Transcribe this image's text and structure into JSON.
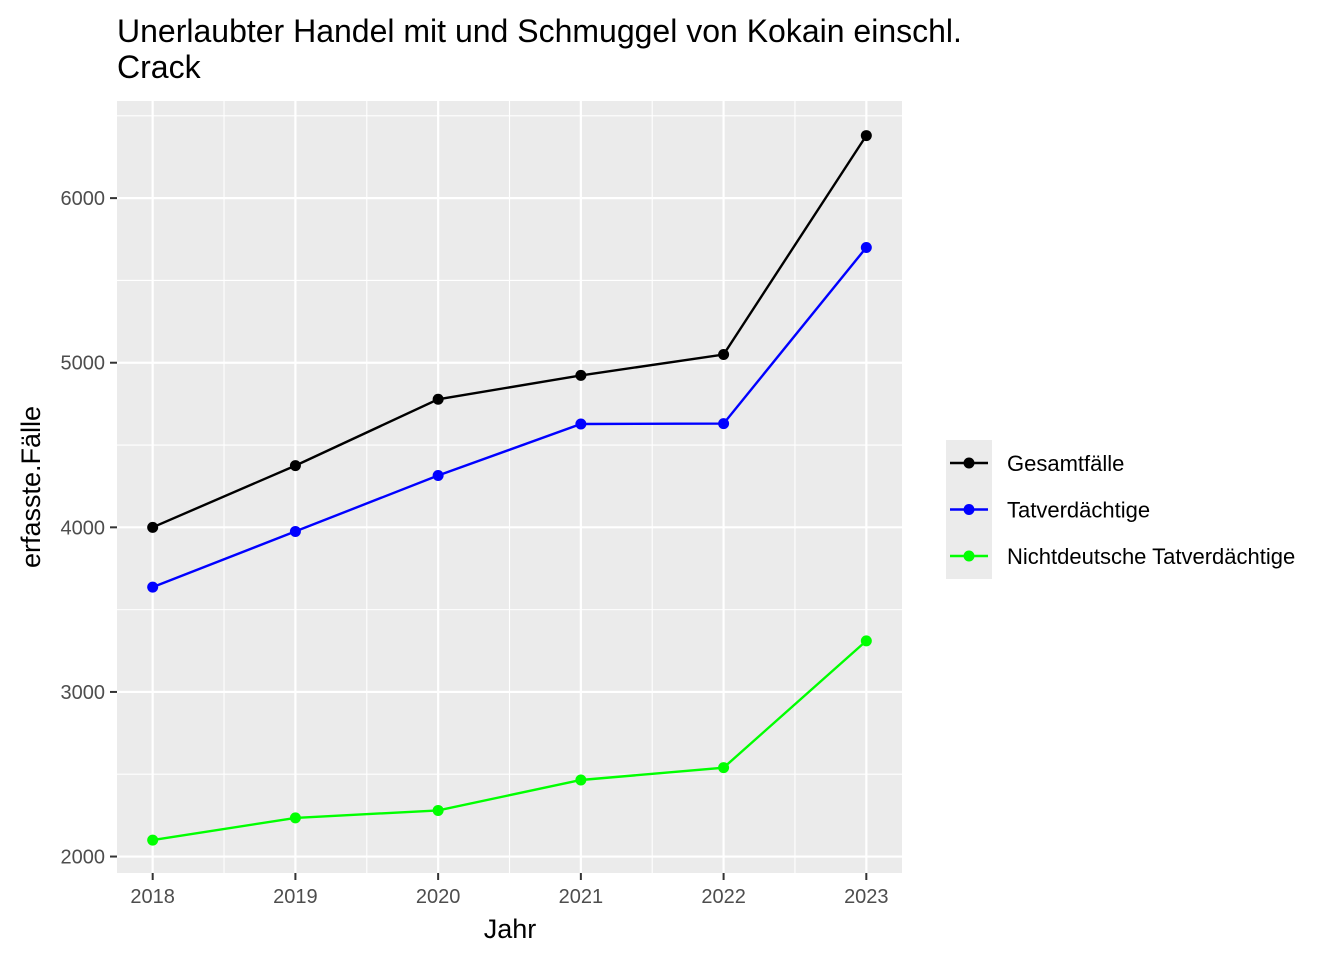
{
  "chart_data": {
    "type": "line",
    "title": "Unerlaubter Handel mit und Schmuggel von Kokain einschl.",
    "title_line2": "Crack",
    "xlabel": "Jahr",
    "ylabel": "erfasste.Fälle",
    "x": [
      2018,
      2019,
      2020,
      2021,
      2022,
      2023
    ],
    "x_tick_labels": [
      "2018",
      "2019",
      "2020",
      "2021",
      "2022",
      "2023"
    ],
    "y_ticks": [
      2000,
      3000,
      4000,
      5000,
      6000
    ],
    "y_tick_labels": [
      "2000",
      "3000",
      "4000",
      "5000",
      "6000"
    ],
    "ylim": [
      1900,
      6590
    ],
    "xlim": [
      2017.75,
      2023.25
    ],
    "grid": true,
    "legend_position": "right",
    "series": [
      {
        "name": "Gesamtfälle",
        "color": "#000000",
        "values": [
          4000,
          4375,
          4778,
          4923,
          5050,
          6380
        ]
      },
      {
        "name": "Tatverdächtige",
        "color": "#0000ff",
        "values": [
          3637,
          3975,
          4315,
          4628,
          4630,
          5700
        ]
      },
      {
        "name": "Nichtdeutsche Tatverdächtige",
        "color": "#00ff00",
        "values": [
          2100,
          2235,
          2280,
          2465,
          2540,
          3310
        ]
      }
    ]
  }
}
